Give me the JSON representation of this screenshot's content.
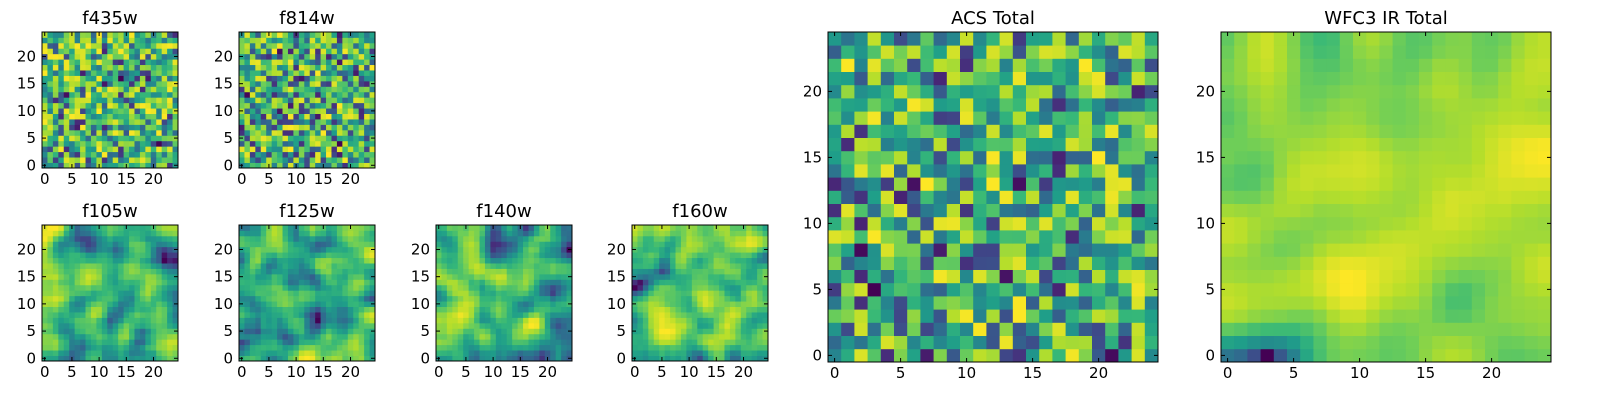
{
  "colormap": "viridis",
  "colors": {
    "frame": "#000000",
    "background": "#ffffff"
  },
  "chart_data": [
    {
      "type": "heatmap",
      "title": "f435w",
      "grid_size": 25,
      "xlim": [
        0,
        24
      ],
      "ylim": [
        0,
        24
      ],
      "xticks": [
        0,
        5,
        10,
        15,
        20
      ],
      "yticks": [
        0,
        5,
        10,
        15,
        20
      ],
      "seed": 11,
      "blur": 0,
      "tilt": 0.55
    },
    {
      "type": "heatmap",
      "title": "f814w",
      "grid_size": 25,
      "xlim": [
        0,
        24
      ],
      "ylim": [
        0,
        24
      ],
      "xticks": [
        0,
        5,
        10,
        15,
        20
      ],
      "yticks": [
        0,
        5,
        10,
        15,
        20
      ],
      "seed": 23,
      "blur": 0,
      "tilt": 0.6
    },
    {
      "type": "heatmap",
      "title": "f105w",
      "grid_size": 25,
      "xlim": [
        0,
        24
      ],
      "ylim": [
        0,
        24
      ],
      "xticks": [
        0,
        5,
        10,
        15,
        20
      ],
      "yticks": [
        0,
        5,
        10,
        15,
        20
      ],
      "seed": 37,
      "blur": 2,
      "tilt": 0.6
    },
    {
      "type": "heatmap",
      "title": "f125w",
      "grid_size": 25,
      "xlim": [
        0,
        24
      ],
      "ylim": [
        0,
        24
      ],
      "xticks": [
        0,
        5,
        10,
        15,
        20
      ],
      "yticks": [
        0,
        5,
        10,
        15,
        20
      ],
      "seed": 41,
      "blur": 2,
      "tilt": 0.55
    },
    {
      "type": "heatmap",
      "title": "f140w",
      "grid_size": 25,
      "xlim": [
        0,
        24
      ],
      "ylim": [
        0,
        24
      ],
      "xticks": [
        0,
        5,
        10,
        15,
        20
      ],
      "yticks": [
        0,
        5,
        10,
        15,
        20
      ],
      "seed": 53,
      "blur": 2,
      "tilt": 0.6
    },
    {
      "type": "heatmap",
      "title": "f160w",
      "grid_size": 25,
      "xlim": [
        0,
        24
      ],
      "ylim": [
        0,
        24
      ],
      "xticks": [
        0,
        5,
        10,
        15,
        20
      ],
      "yticks": [
        0,
        5,
        10,
        15,
        20
      ],
      "seed": 67,
      "blur": 2,
      "tilt": 0.5
    },
    {
      "type": "heatmap",
      "title": "ACS Total",
      "grid_size": 25,
      "xlim": [
        0,
        24
      ],
      "ylim": [
        0,
        24
      ],
      "xticks": [
        0,
        5,
        10,
        15,
        20
      ],
      "yticks": [
        0,
        5,
        10,
        15,
        20
      ],
      "seed": 79,
      "blur": 0,
      "tilt": 0.6
    },
    {
      "type": "heatmap",
      "title": "WFC3 IR Total",
      "grid_size": 25,
      "xlim": [
        0,
        24
      ],
      "ylim": [
        0,
        24
      ],
      "xticks": [
        0,
        5,
        10,
        15,
        20
      ],
      "yticks": [
        0,
        5,
        10,
        15,
        20
      ],
      "seed": 97,
      "blur": 3,
      "tilt": 0.35
    }
  ]
}
